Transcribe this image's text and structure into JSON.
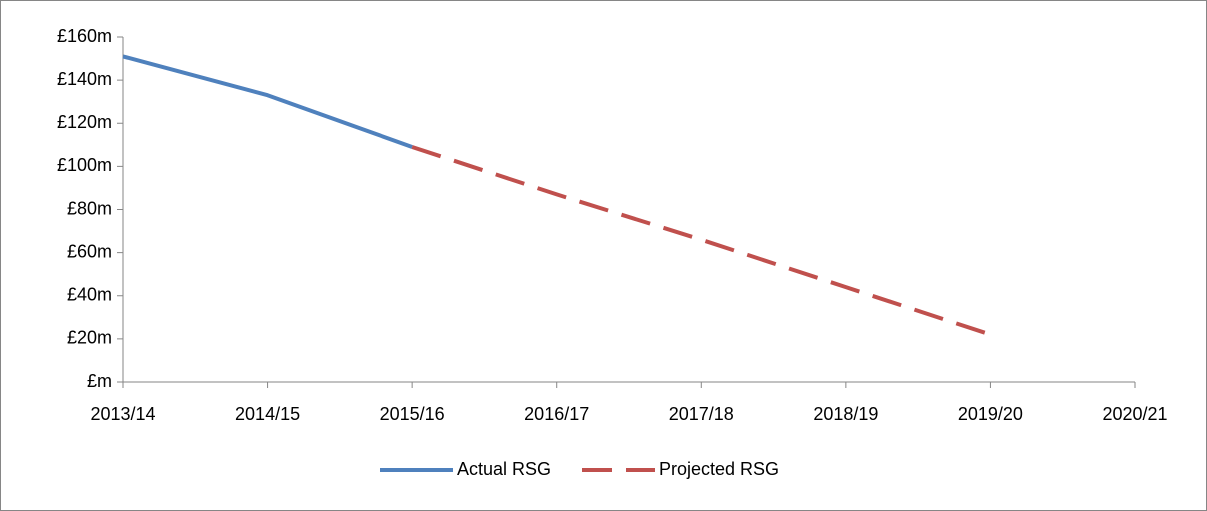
{
  "chart_data": {
    "type": "line",
    "categories": [
      "2013/14",
      "2014/15",
      "2015/16",
      "2016/17",
      "2017/18",
      "2018/19",
      "2019/20",
      "2020/21"
    ],
    "series": [
      {
        "name": "Actual RSG",
        "color": "#4f81bd",
        "dash": false,
        "values": [
          151,
          133,
          109,
          null,
          null,
          null,
          null,
          null
        ]
      },
      {
        "name": "Projected RSG",
        "color": "#c0504d",
        "dash": true,
        "values": [
          null,
          null,
          109,
          87,
          66,
          44,
          22,
          null
        ]
      }
    ],
    "ylim": [
      0,
      160
    ],
    "yticks": [
      {
        "value": 0,
        "label": "£m"
      },
      {
        "value": 20,
        "label": "£20m"
      },
      {
        "value": 40,
        "label": "£40m"
      },
      {
        "value": 60,
        "label": "£60m"
      },
      {
        "value": 80,
        "label": "£80m"
      },
      {
        "value": 100,
        "label": "£100m"
      },
      {
        "value": 120,
        "label": "£120m"
      },
      {
        "value": 140,
        "label": "£140m"
      },
      {
        "value": 160,
        "label": "£160m"
      }
    ],
    "grid": false,
    "legend": "bottom"
  }
}
